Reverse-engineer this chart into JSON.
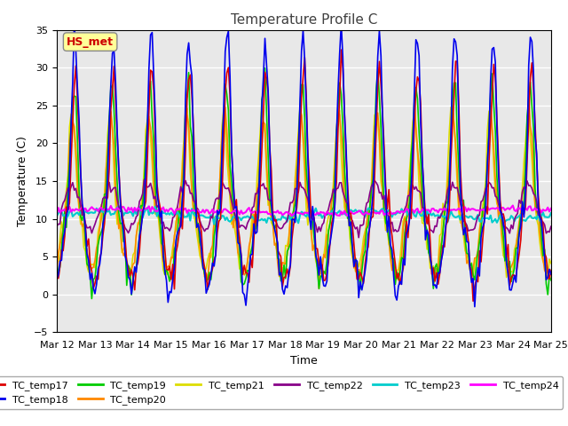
{
  "title": "Temperature Profile C",
  "xlabel": "Time",
  "ylabel": "Temperature (C)",
  "ylim": [
    -5,
    35
  ],
  "xlim_days": [
    0,
    13
  ],
  "x_tick_labels": [
    "Mar 12",
    "Mar 13",
    "Mar 14",
    "Mar 15",
    "Mar 16",
    "Mar 17",
    "Mar 18",
    "Mar 19",
    "Mar 20",
    "Mar 21",
    "Mar 22",
    "Mar 23",
    "Mar 24",
    "Mar 25"
  ],
  "annotation_label": "HS_met",
  "annotation_color": "#cc0000",
  "annotation_bg": "#ffff99",
  "series": [
    {
      "name": "TC_temp17",
      "color": "#dd0000",
      "lw": 1.2
    },
    {
      "name": "TC_temp18",
      "color": "#0000ee",
      "lw": 1.2
    },
    {
      "name": "TC_temp19",
      "color": "#00cc00",
      "lw": 1.2
    },
    {
      "name": "TC_temp20",
      "color": "#ff8800",
      "lw": 1.2
    },
    {
      "name": "TC_temp21",
      "color": "#dddd00",
      "lw": 1.2
    },
    {
      "name": "TC_temp22",
      "color": "#880088",
      "lw": 1.2
    },
    {
      "name": "TC_temp23",
      "color": "#00cccc",
      "lw": 1.5
    },
    {
      "name": "TC_temp24",
      "color": "#ff00ff",
      "lw": 1.5
    }
  ],
  "bg_color": "#e8e8e8",
  "yticks": [
    -5,
    0,
    5,
    10,
    15,
    20,
    25,
    30,
    35
  ],
  "figsize": [
    6.4,
    4.8
  ],
  "dpi": 100
}
